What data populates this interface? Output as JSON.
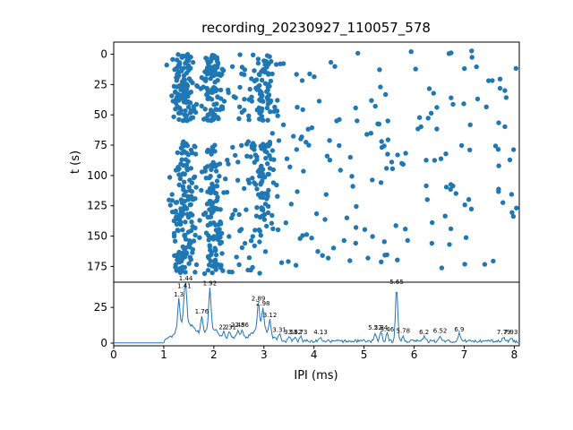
{
  "figure": {
    "title": "recording_20230927_110057_578",
    "background": "#ffffff",
    "accent_color": "#1f77b4"
  },
  "chart_data": [
    {
      "type": "scatter",
      "title": "recording_20230927_110057_578",
      "xlabel": "IPI (ms)",
      "ylabel": "t (s)",
      "xlim": [
        0,
        8.1
      ],
      "ylim": [
        -10,
        188
      ],
      "y_inverted": true,
      "xticks": [
        0,
        1,
        2,
        3,
        4,
        5,
        6,
        7,
        8
      ],
      "yticks": [
        0,
        25,
        50,
        75,
        100,
        125,
        150,
        175
      ],
      "point_color": "#1f77b4",
      "point_radius": 2.7,
      "seed": 42,
      "t_range": [
        -3,
        182
      ],
      "time_gap": [
        56,
        71
      ],
      "bands": [
        {
          "center": 1.4,
          "sd": 0.13,
          "count": 260,
          "t_segments": [
            [
              0,
              55,
              0.45
            ],
            [
              72,
              181,
              0.55
            ]
          ]
        },
        {
          "center": 1.97,
          "sd": 0.1,
          "count": 200,
          "t_segments": [
            [
              0,
              55,
              0.45
            ],
            [
              72,
              181,
              0.55
            ]
          ]
        },
        {
          "center": 3.0,
          "sd": 0.12,
          "count": 130,
          "t_segments": [
            [
              0,
              55,
              0.5
            ],
            [
              72,
              135,
              0.5
            ]
          ]
        },
        {
          "center": 2.55,
          "sd": 0.3,
          "count": 70,
          "t_segments": [
            [
              0,
              55,
              0.35
            ],
            [
              72,
              181,
              0.65
            ]
          ]
        }
      ],
      "background_points": {
        "x_range": [
          1.05,
          8.05
        ],
        "count": 230,
        "t_range": [
          -3,
          182
        ]
      }
    },
    {
      "type": "line",
      "xlabel": "IPI (ms)",
      "ylabel": "",
      "xlim": [
        0,
        8.1
      ],
      "ylim": [
        0,
        42
      ],
      "yticks": [
        0,
        25
      ],
      "line_color": "#1f77b4",
      "x_start": 1.02,
      "x_end": 8.05,
      "grid_step": 0.02,
      "baseline_noise": [
        0.3,
        2.5
      ],
      "broad": [
        {
          "x": 1.45,
          "h": 13,
          "sd": 0.18
        },
        {
          "x": 1.95,
          "h": 9,
          "sd": 0.12
        },
        {
          "x": 2.45,
          "h": 3,
          "sd": 0.2
        },
        {
          "x": 2.95,
          "h": 9,
          "sd": 0.15
        }
      ],
      "peaks": [
        {
          "x": 1.3,
          "h": 20,
          "label": "1.3"
        },
        {
          "x": 1.41,
          "h": 14,
          "label": "1.41"
        },
        {
          "x": 1.44,
          "h": 22,
          "label": "1.44"
        },
        {
          "x": 1.76,
          "h": 12,
          "label": "1.76"
        },
        {
          "x": 1.92,
          "h": 28,
          "label": "1.92"
        },
        {
          "x": 2.2,
          "h": 4,
          "label": "2.2"
        },
        {
          "x": 2.31,
          "h": 4,
          "label": "2.31"
        },
        {
          "x": 2.48,
          "h": 5,
          "label": "2.48"
        },
        {
          "x": 2.56,
          "h": 5,
          "label": "2.56"
        },
        {
          "x": 2.89,
          "h": 18,
          "label": "2.89"
        },
        {
          "x": 2.98,
          "h": 14,
          "label": "2.98"
        },
        {
          "x": 3.12,
          "h": 10,
          "label": "3.12"
        },
        {
          "x": 3.31,
          "h": 4,
          "label": "3.31"
        },
        {
          "x": 3.5,
          "h": 3,
          "label": "3.5"
        },
        {
          "x": 3.62,
          "h": 3,
          "label": "3.62"
        },
        {
          "x": 3.73,
          "h": 3,
          "label": "3.73"
        },
        {
          "x": 4.13,
          "h": 3,
          "label": "4.13"
        },
        {
          "x": 5.22,
          "h": 6,
          "label": "5.22"
        },
        {
          "x": 5.34,
          "h": 6,
          "label": "5.34"
        },
        {
          "x": 5.46,
          "h": 5,
          "label": "5.46"
        },
        {
          "x": 5.65,
          "h": 38,
          "label": "5.65"
        },
        {
          "x": 5.78,
          "h": 4,
          "label": "5.78"
        },
        {
          "x": 6.2,
          "h": 3,
          "label": "6.2"
        },
        {
          "x": 6.52,
          "h": 4,
          "label": "6.52"
        },
        {
          "x": 6.9,
          "h": 5,
          "label": "6.9"
        },
        {
          "x": 7.79,
          "h": 3,
          "label": "7.79"
        },
        {
          "x": 7.93,
          "h": 3,
          "label": "7.93"
        }
      ]
    }
  ]
}
